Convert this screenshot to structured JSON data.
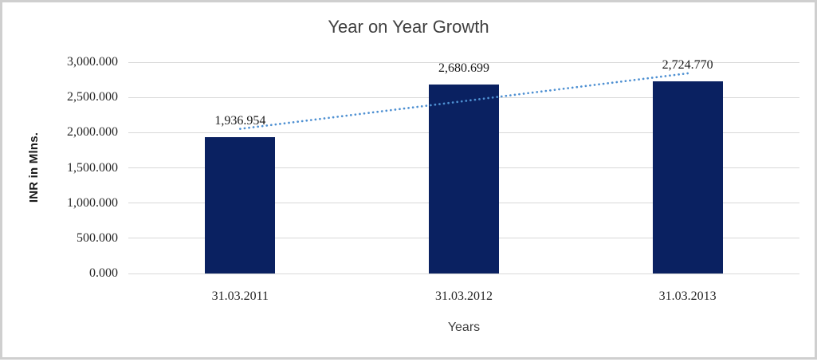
{
  "chart_data": {
    "type": "bar",
    "title": "Year on Year Growth",
    "xlabel": "Years",
    "ylabel": "INR in Mlns.",
    "categories": [
      "31.03.2011",
      "31.03.2012",
      "31.03.2013"
    ],
    "values": [
      1936.954,
      2680.699,
      2724.77
    ],
    "data_labels": [
      "1,936.954",
      "2,680.699",
      "2,724.770"
    ],
    "ylim": [
      0,
      3000
    ],
    "ytick_step": 500,
    "ytick_labels": [
      "0.000",
      "500.000",
      "1,000.000",
      "1,500.000",
      "2,000.000",
      "2,500.000",
      "3,000.000"
    ],
    "grid": true,
    "legend_position": "none",
    "trendline": {
      "type": "linear",
      "style": "dotted"
    },
    "colors": {
      "bar": "#0a2161",
      "trendline": "#4e90d2",
      "gridline": "#d9d9d9",
      "title_text": "#404040",
      "axis_text": "#262626",
      "frame_border": "#cfcfcf",
      "background": "#ffffff"
    }
  }
}
